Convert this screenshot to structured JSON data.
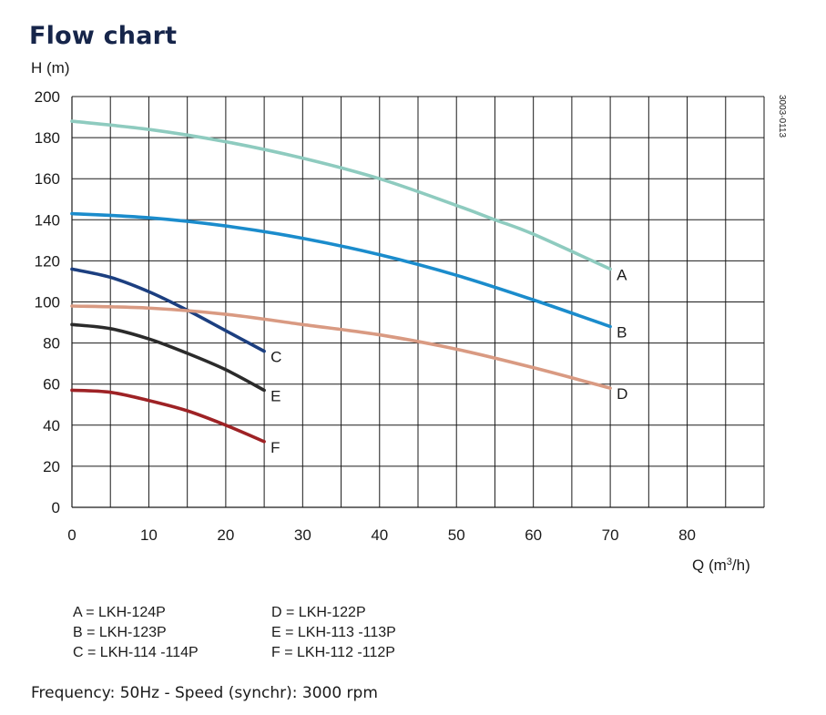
{
  "page": {
    "title": "Flow chart",
    "doc_code": "3003-0113",
    "legend_col1": [
      "A = LKH-124P",
      "B = LKH-123P",
      "C = LKH-114 -114P"
    ],
    "legend_col2": [
      "D = LKH-122P",
      "E = LKH-113 -113P",
      "F = LKH-112 -112P"
    ],
    "footnote": "Frequency: 50Hz - Speed (synchr): 3000 rpm"
  },
  "chart_data": {
    "type": "line",
    "title": "Flow chart",
    "ylabel": "H (m)",
    "xlabel_base": "Q (m",
    "xlabel_sup": "3",
    "xlabel_tail": "/h)",
    "xlim": [
      0,
      90
    ],
    "ylim": [
      0,
      200
    ],
    "xticks": [
      0,
      10,
      20,
      30,
      40,
      50,
      60,
      70,
      80
    ],
    "yticks": [
      0,
      20,
      40,
      60,
      80,
      100,
      120,
      140,
      160,
      180,
      200
    ],
    "x_grid_step": 5,
    "y_grid_step": 20,
    "grid": true,
    "series": [
      {
        "name": "A",
        "color": "#8ecbbf",
        "x": [
          0,
          10,
          20,
          30,
          40,
          50,
          55,
          60,
          70
        ],
        "y": [
          188,
          184,
          178,
          170,
          160,
          147,
          140,
          133,
          116
        ]
      },
      {
        "name": "B",
        "color": "#1b8ccc",
        "x": [
          0,
          10,
          20,
          30,
          40,
          50,
          60,
          70
        ],
        "y": [
          143,
          141,
          137,
          131,
          123,
          113,
          101,
          88
        ]
      },
      {
        "name": "C",
        "color": "#1c3f80",
        "x": [
          0,
          5,
          10,
          15,
          20,
          25
        ],
        "y": [
          116,
          112,
          105,
          96,
          86,
          76
        ]
      },
      {
        "name": "D",
        "color": "#d99a82",
        "x": [
          0,
          10,
          20,
          30,
          40,
          50,
          60,
          70
        ],
        "y": [
          98,
          97,
          94,
          89,
          84,
          77,
          68,
          58
        ]
      },
      {
        "name": "E",
        "color": "#2b2b2b",
        "x": [
          0,
          5,
          10,
          15,
          20,
          25
        ],
        "y": [
          89,
          87,
          82,
          75,
          67,
          57
        ]
      },
      {
        "name": "F",
        "color": "#9e2225",
        "x": [
          0,
          5,
          10,
          15,
          20,
          25
        ],
        "y": [
          57,
          56,
          52,
          47,
          40,
          32
        ]
      }
    ]
  }
}
